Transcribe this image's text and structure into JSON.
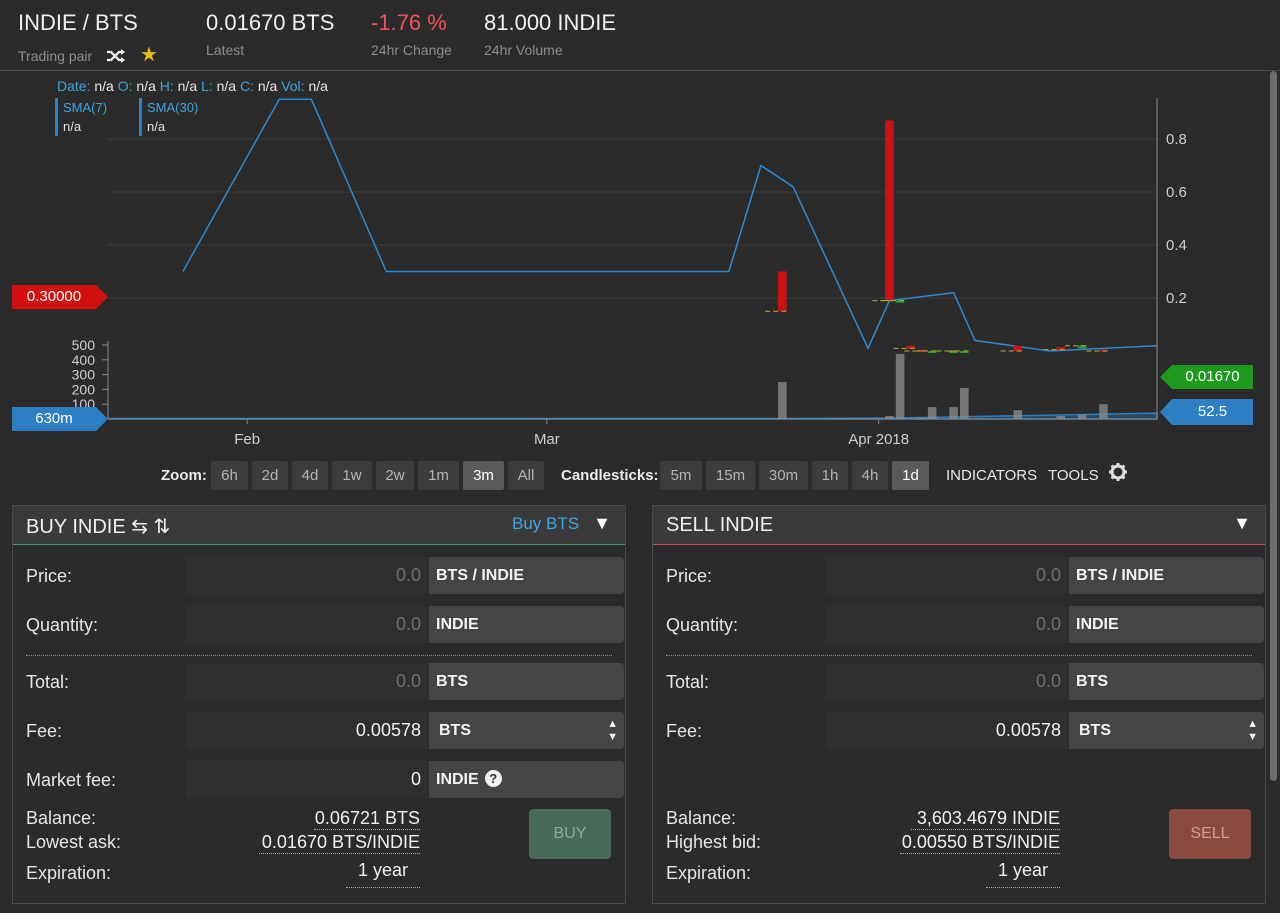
{
  "header": {
    "pair": "INDIE / BTS",
    "pair_label": "Trading pair",
    "latest_value": "0.01670 BTS",
    "latest_label": "Latest",
    "change_value": "-1.76 %",
    "change_label": "24hr Change",
    "volume_value": "81.000 INDIE",
    "volume_label": "24hr Volume",
    "icons": [
      "shuffle-icon",
      "star-icon"
    ],
    "colors": {
      "negative": "#f0505a",
      "star": "#e8b923"
    }
  },
  "chart": {
    "ohlc": {
      "date_k": "Date:",
      "date_v": "n/a",
      "o_k": "O:",
      "o_v": "n/a",
      "h_k": "H:",
      "h_v": "n/a",
      "l_k": "L:",
      "l_v": "n/a",
      "c_k": "C:",
      "c_v": "n/a",
      "vol_k": "Vol:",
      "vol_v": "n/a"
    },
    "sma7_title": "SMA(7)",
    "sma7_value": "n/a",
    "sma30_title": "SMA(30)",
    "sma30_value": "n/a",
    "left_price_tag": "0.30000",
    "left_volume_tag": "630m",
    "right_price_tag": "0.01670",
    "right_volume_tag": "52.5",
    "tag_colors": {
      "red": "#d21010",
      "green": "#1f9a1f",
      "blue": "#2b7fc2"
    }
  },
  "chart_data": {
    "type": "candlestick",
    "price_y_ticks": [
      "0.8",
      "0.6",
      "0.4",
      "0.2"
    ],
    "price_ylim": [
      0,
      1.0
    ],
    "volume_y_ticks": [
      "500",
      "400",
      "300",
      "200",
      "100"
    ],
    "volume_ylim": [
      0,
      500
    ],
    "x_ticks": [
      "Feb",
      "Mar",
      "Apr 2018"
    ],
    "x_tick_dates": [
      "2018-02-01",
      "2018-03-01",
      "2018-04-01"
    ],
    "x_range": [
      "2018-01-19",
      "2018-04-27"
    ],
    "grid": true,
    "candles": [
      {
        "date": "2018-03-23",
        "open": 0.3,
        "high": 0.3,
        "low": 0.15,
        "close": 0.15,
        "volume": 250
      },
      {
        "date": "2018-04-02",
        "open": 0.87,
        "high": 0.87,
        "low": 0.19,
        "close": 0.19,
        "volume": 20
      },
      {
        "date": "2018-04-03",
        "open": 0.19,
        "high": 0.19,
        "low": 0.19,
        "close": 0.19,
        "volume": 440
      },
      {
        "date": "2018-04-04",
        "open": 0.02,
        "high": 0.02,
        "low": 0.01,
        "close": 0.01,
        "volume": 5
      },
      {
        "date": "2018-04-05",
        "open": 0.005,
        "high": 0.005,
        "low": 0.0,
        "close": 0.0,
        "volume": 10
      },
      {
        "date": "2018-04-06",
        "open": 0.0,
        "high": 0.0,
        "low": 0.0,
        "close": 0.0,
        "volume": 80
      },
      {
        "date": "2018-04-08",
        "open": 0.0,
        "high": 0.0,
        "low": 0.0,
        "close": 0.0,
        "volume": 80
      },
      {
        "date": "2018-04-09",
        "open": 0.0,
        "high": 0.0,
        "low": 0.0,
        "close": 0.0,
        "volume": 210
      },
      {
        "date": "2018-04-14",
        "open": 0.02,
        "high": 0.02,
        "low": 0.0,
        "close": 0.0,
        "volume": 60
      },
      {
        "date": "2018-04-18",
        "open": 0.015,
        "high": 0.015,
        "low": 0.005,
        "close": 0.005,
        "volume": 20
      },
      {
        "date": "2018-04-20",
        "open": 0.01,
        "high": 0.02,
        "low": 0.01,
        "close": 0.02,
        "volume": 30
      },
      {
        "date": "2018-04-22",
        "open": 0.005,
        "high": 0.005,
        "low": 0.0,
        "close": 0.0,
        "volume": 100
      }
    ],
    "series": [
      {
        "name": "SMA(7)",
        "points": [
          [
            "2018-01-26",
            0.3
          ],
          [
            "2018-02-04",
            0.95
          ],
          [
            "2018-02-07",
            0.95
          ],
          [
            "2018-02-14",
            0.3
          ],
          [
            "2018-03-18",
            0.3
          ],
          [
            "2018-03-21",
            0.7
          ],
          [
            "2018-03-24",
            0.62
          ],
          [
            "2018-03-31",
            0.01
          ],
          [
            "2018-04-02",
            0.19
          ],
          [
            "2018-04-08",
            0.22
          ],
          [
            "2018-04-10",
            0.04
          ],
          [
            "2018-04-17",
            0.0
          ],
          [
            "2018-04-27",
            0.02
          ]
        ]
      }
    ],
    "volume_line": [
      [
        "2018-01-19",
        3
      ],
      [
        "2018-03-22",
        3
      ],
      [
        "2018-03-23",
        3
      ],
      [
        "2018-04-02",
        6
      ],
      [
        "2018-04-27",
        40
      ]
    ]
  },
  "zoom": {
    "label": "Zoom:",
    "options": [
      "6h",
      "2d",
      "4d",
      "1w",
      "2w",
      "1m",
      "3m",
      "All"
    ],
    "active": "3m"
  },
  "candles_bar": {
    "label": "Candlesticks:",
    "options": [
      "5m",
      "15m",
      "30m",
      "1h",
      "4h",
      "1d"
    ],
    "active": "1d",
    "indicators": "INDICATORS",
    "tools": "TOOLS"
  },
  "buy": {
    "title": "BUY INDIE ⇆ ⇅",
    "link": "Buy BTS",
    "price_label": "Price:",
    "price_placeholder": "0.0",
    "price_unit": "BTS / INDIE",
    "qty_label": "Quantity:",
    "qty_placeholder": "0.0",
    "qty_unit": "INDIE",
    "total_label": "Total:",
    "total_placeholder": "0.0",
    "total_unit": "BTS",
    "fee_label": "Fee:",
    "fee_value": "0.00578",
    "fee_unit": "BTS",
    "mfee_label": "Market fee:",
    "mfee_value": "0",
    "mfee_unit": "INDIE",
    "balance_label": "Balance:",
    "balance_value": "0.06721 BTS",
    "ask_label": "Lowest ask:",
    "ask_value": "0.01670 BTS/INDIE",
    "exp_label": "Expiration:",
    "exp_value": "1 year",
    "button": "BUY"
  },
  "sell": {
    "title": "SELL INDIE",
    "price_label": "Price:",
    "price_placeholder": "0.0",
    "price_unit": "BTS / INDIE",
    "qty_label": "Quantity:",
    "qty_placeholder": "0.0",
    "qty_unit": "INDIE",
    "total_label": "Total:",
    "total_placeholder": "0.0",
    "total_unit": "BTS",
    "fee_label": "Fee:",
    "fee_value": "0.00578",
    "fee_unit": "BTS",
    "balance_label": "Balance:",
    "balance_value": "3,603.4679 INDIE",
    "bid_label": "Highest bid:",
    "bid_value": "0.00550 BTS/INDIE",
    "exp_label": "Expiration:",
    "exp_value": "1 year",
    "button": "SELL"
  }
}
